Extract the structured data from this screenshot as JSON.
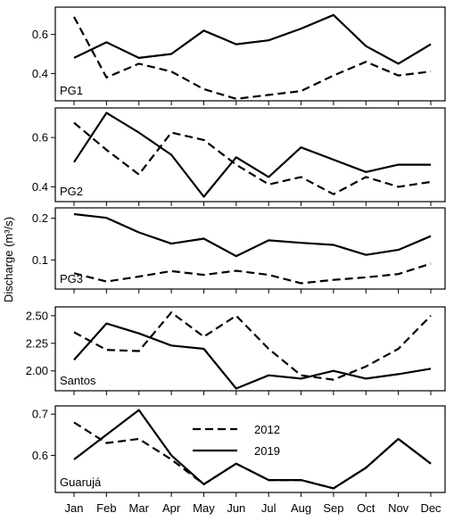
{
  "chart_data": {
    "type": "line",
    "ylabel": "Discharge (m³/s)",
    "categories": [
      "Jan",
      "Feb",
      "Mar",
      "Apr",
      "May",
      "Jun",
      "Jul",
      "Aug",
      "Sep",
      "Oct",
      "Nov",
      "Dec"
    ],
    "legend": {
      "placement": "inside Guarujá panel, upper-center",
      "entries": [
        {
          "name": "2012",
          "style": "dashed"
        },
        {
          "name": "2019",
          "style": "solid"
        }
      ]
    },
    "panels": [
      {
        "label": "PG1",
        "ylim": [
          0.26,
          0.74
        ],
        "yticks": [
          0.4,
          0.6
        ],
        "ytick_labels": [
          "0.4",
          "0.6"
        ],
        "series": [
          {
            "name": "2012",
            "values": [
              0.69,
              0.38,
              0.45,
              0.41,
              0.32,
              0.27,
              0.29,
              0.31,
              0.39,
              0.46,
              0.39,
              0.41
            ]
          },
          {
            "name": "2019",
            "values": [
              0.48,
              0.56,
              0.48,
              0.5,
              0.62,
              0.55,
              0.57,
              0.63,
              0.7,
              0.54,
              0.45,
              0.55
            ]
          }
        ]
      },
      {
        "label": "PG2",
        "ylim": [
          0.34,
          0.72
        ],
        "yticks": [
          0.4,
          0.6
        ],
        "ytick_labels": [
          "0.4",
          "0.6"
        ],
        "series": [
          {
            "name": "2012",
            "values": [
              0.66,
              0.55,
              0.45,
              0.62,
              0.59,
              0.49,
              0.41,
              0.44,
              0.37,
              0.44,
              0.4,
              0.42
            ]
          },
          {
            "name": "2019",
            "values": [
              0.5,
              0.7,
              0.62,
              0.53,
              0.36,
              0.52,
              0.44,
              0.56,
              0.51,
              0.46,
              0.49,
              0.49
            ]
          }
        ]
      },
      {
        "label": "PG3",
        "ylim": [
          0.03,
          0.225
        ],
        "yticks": [
          0.1,
          0.2
        ],
        "ytick_labels": [
          "0.1",
          "0.2"
        ],
        "series": [
          {
            "name": "2012",
            "values": [
              0.068,
              0.048,
              0.06,
              0.073,
              0.064,
              0.074,
              0.064,
              0.044,
              0.052,
              0.058,
              0.066,
              0.091
            ]
          },
          {
            "name": "2019",
            "values": [
              0.21,
              0.201,
              0.166,
              0.139,
              0.151,
              0.109,
              0.147,
              0.141,
              0.136,
              0.112,
              0.124,
              0.157
            ]
          }
        ]
      },
      {
        "label": "Santos",
        "ylim": [
          1.82,
          2.58
        ],
        "yticks": [
          2.0,
          2.25,
          2.5
        ],
        "ytick_labels": [
          "2.00",
          "2.25",
          "2.50"
        ],
        "series": [
          {
            "name": "2012",
            "values": [
              2.35,
              2.19,
              2.18,
              2.53,
              2.31,
              2.5,
              2.2,
              1.96,
              1.92,
              2.04,
              2.2,
              2.5
            ]
          },
          {
            "name": "2019",
            "values": [
              2.1,
              2.43,
              2.34,
              2.23,
              2.2,
              1.84,
              1.96,
              1.93,
              2.0,
              1.93,
              1.97,
              2.02
            ]
          }
        ]
      },
      {
        "label": "Guarujá",
        "ylim": [
          0.51,
          0.72
        ],
        "yticks": [
          0.6,
          0.7
        ],
        "ytick_labels": [
          "0.6",
          "0.7"
        ],
        "series": [
          {
            "name": "2012",
            "values": [
              0.68,
              0.63,
              0.64,
              0.59,
              0.53,
              0.58,
              0.54,
              0.54,
              0.52,
              0.57,
              0.64,
              0.58
            ]
          },
          {
            "name": "2019",
            "values": [
              0.59,
              0.65,
              0.71,
              0.6,
              0.53,
              0.58,
              0.54,
              0.54,
              0.52,
              0.57,
              0.64,
              0.58
            ]
          }
        ]
      }
    ]
  },
  "colors": {
    "line": "#000000",
    "axes": "#000000",
    "background": "#ffffff"
  }
}
